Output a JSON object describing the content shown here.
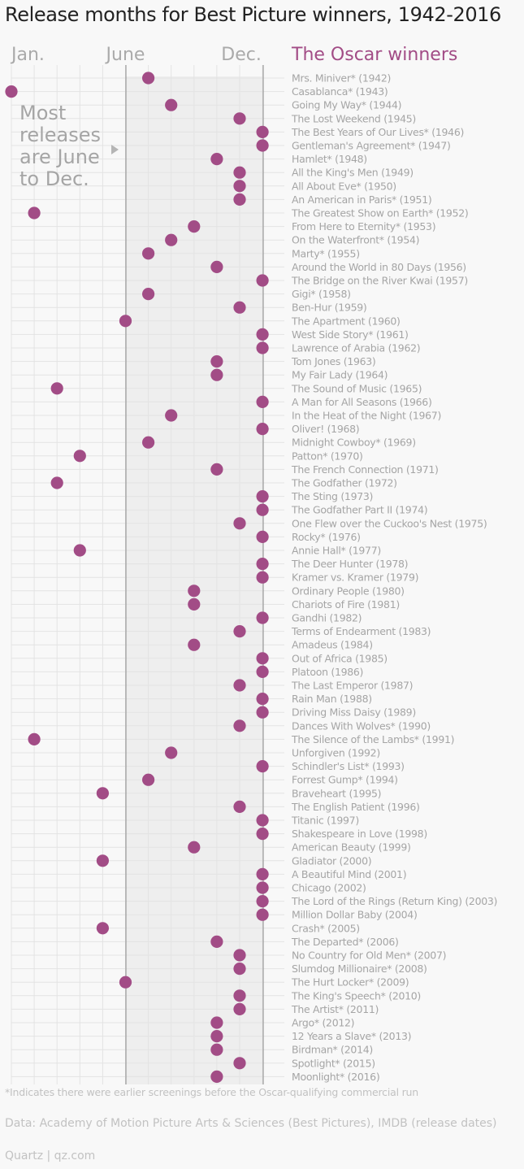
{
  "title": "Release months for Best Picture winners, 1942-2016",
  "footnote": "*Indicates there were earlier screenings before the Oscar-qualifying commercial run",
  "source": "Data: Academy of Motion Picture Arts & Sciences (Best Pictures), IMDB (release dates)",
  "credit": "Quartz | qz.com",
  "chart_data": {
    "type": "scatter",
    "title": "Release months for Best Picture winners, 1942-2016",
    "x_axis": {
      "range": [
        1,
        12
      ],
      "tick_labels": [
        {
          "month": 1,
          "label": "Jan."
        },
        {
          "month": 6,
          "label": "June"
        },
        {
          "month": 12,
          "label": "Dec."
        }
      ]
    },
    "highlight_range": [
      6,
      12
    ],
    "series_header": "The Oscar winners",
    "annotation": [
      "Most",
      "releases",
      "are June",
      "to Dec."
    ],
    "annotation_arrow": "arrow-right-icon",
    "point_color": "#a24c86",
    "films": [
      {
        "label": "Mrs. Miniver* (1942)",
        "month": 7
      },
      {
        "label": "Casablanca* (1943)",
        "month": 1
      },
      {
        "label": "Going My Way* (1944)",
        "month": 8
      },
      {
        "label": "The Lost Weekend (1945)",
        "month": 11
      },
      {
        "label": "The Best Years of Our Lives* (1946)",
        "month": 12
      },
      {
        "label": "Gentleman's Agreement* (1947)",
        "month": 12
      },
      {
        "label": "Hamlet* (1948)",
        "month": 10
      },
      {
        "label": "All the King's Men (1949)",
        "month": 11
      },
      {
        "label": "All About Eve* (1950)",
        "month": 11
      },
      {
        "label": "An American in Paris* (1951)",
        "month": 11
      },
      {
        "label": "The Greatest Show on Earth* (1952)",
        "month": 2
      },
      {
        "label": "From Here to Eternity* (1953)",
        "month": 9
      },
      {
        "label": "On the Waterfront* (1954)",
        "month": 8
      },
      {
        "label": "Marty* (1955)",
        "month": 7
      },
      {
        "label": "Around the World in 80 Days (1956)",
        "month": 10
      },
      {
        "label": "The Bridge on the River Kwai (1957)",
        "month": 12
      },
      {
        "label": "Gigi* (1958)",
        "month": 7
      },
      {
        "label": "Ben-Hur (1959)",
        "month": 11
      },
      {
        "label": "The Apartment (1960)",
        "month": 6
      },
      {
        "label": "West Side Story* (1961)",
        "month": 12
      },
      {
        "label": "Lawrence of Arabia (1962)",
        "month": 12
      },
      {
        "label": "Tom Jones (1963)",
        "month": 10
      },
      {
        "label": "My Fair Lady (1964)",
        "month": 10
      },
      {
        "label": "The Sound of Music (1965)",
        "month": 3
      },
      {
        "label": "A Man for All Seasons (1966)",
        "month": 12
      },
      {
        "label": "In the Heat of the Night (1967)",
        "month": 8
      },
      {
        "label": "Oliver! (1968)",
        "month": 12
      },
      {
        "label": "Midnight Cowboy* (1969)",
        "month": 7
      },
      {
        "label": "Patton* (1970)",
        "month": 4
      },
      {
        "label": "The French Connection (1971)",
        "month": 10
      },
      {
        "label": "The Godfather (1972)",
        "month": 3
      },
      {
        "label": "The Sting (1973)",
        "month": 12
      },
      {
        "label": "The Godfather Part II (1974)",
        "month": 12
      },
      {
        "label": "One Flew over the Cuckoo's Nest (1975)",
        "month": 11
      },
      {
        "label": "Rocky* (1976)",
        "month": 12
      },
      {
        "label": "Annie Hall* (1977)",
        "month": 4
      },
      {
        "label": "The Deer Hunter (1978)",
        "month": 12
      },
      {
        "label": "Kramer vs. Kramer (1979)",
        "month": 12
      },
      {
        "label": "Ordinary People (1980)",
        "month": 9
      },
      {
        "label": "Chariots of Fire (1981)",
        "month": 9
      },
      {
        "label": "Gandhi (1982)",
        "month": 12
      },
      {
        "label": "Terms of Endearment (1983)",
        "month": 11
      },
      {
        "label": "Amadeus (1984)",
        "month": 9
      },
      {
        "label": "Out of Africa (1985)",
        "month": 12
      },
      {
        "label": "Platoon (1986)",
        "month": 12
      },
      {
        "label": "The Last Emperor (1987)",
        "month": 11
      },
      {
        "label": "Rain Man (1988)",
        "month": 12
      },
      {
        "label": "Driving Miss Daisy (1989)",
        "month": 12
      },
      {
        "label": "Dances With Wolves* (1990)",
        "month": 11
      },
      {
        "label": "The Silence of the Lambs* (1991)",
        "month": 2
      },
      {
        "label": "Unforgiven (1992)",
        "month": 8
      },
      {
        "label": "Schindler's List* (1993)",
        "month": 12
      },
      {
        "label": "Forrest Gump* (1994)",
        "month": 7
      },
      {
        "label": "Braveheart (1995)",
        "month": 5
      },
      {
        "label": "The English Patient (1996)",
        "month": 11
      },
      {
        "label": "Titanic (1997)",
        "month": 12
      },
      {
        "label": "Shakespeare in Love (1998)",
        "month": 12
      },
      {
        "label": "American Beauty (1999)",
        "month": 9
      },
      {
        "label": "Gladiator (2000)",
        "month": 5
      },
      {
        "label": "A Beautiful Mind (2001)",
        "month": 12
      },
      {
        "label": "Chicago (2002)",
        "month": 12
      },
      {
        "label": "The Lord of the Rings (Return King) (2003)",
        "month": 12
      },
      {
        "label": "Million Dollar Baby (2004)",
        "month": 12
      },
      {
        "label": "Crash* (2005)",
        "month": 5
      },
      {
        "label": "The Departed* (2006)",
        "month": 10
      },
      {
        "label": "No Country for Old Men* (2007)",
        "month": 11
      },
      {
        "label": "Slumdog Millionaire* (2008)",
        "month": 11
      },
      {
        "label": "The Hurt Locker* (2009)",
        "month": 6
      },
      {
        "label": "The King's Speech* (2010)",
        "month": 11
      },
      {
        "label": "The Artist* (2011)",
        "month": 11
      },
      {
        "label": "Argo* (2012)",
        "month": 10
      },
      {
        "label": "12 Years a Slave* (2013)",
        "month": 10
      },
      {
        "label": "Birdman* (2014)",
        "month": 10
      },
      {
        "label": "Spotlight* (2015)",
        "month": 11
      },
      {
        "label": "Moonlight* (2016)",
        "month": 10
      }
    ]
  }
}
